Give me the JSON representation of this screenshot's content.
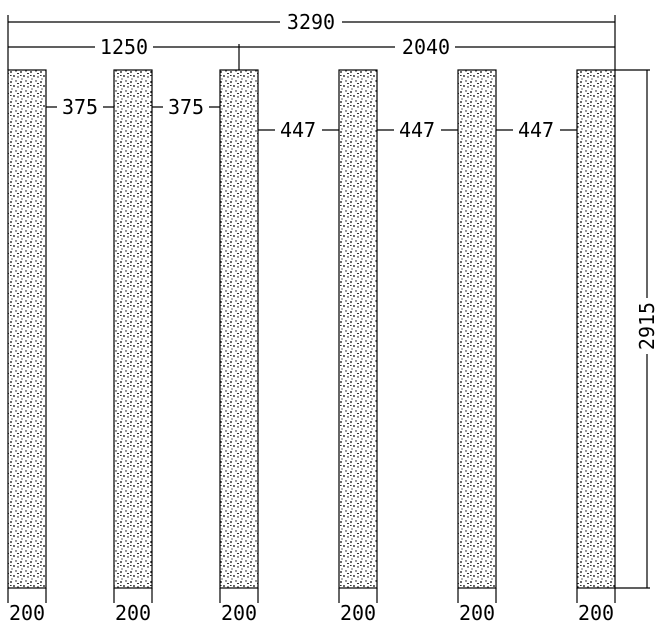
{
  "drawing": {
    "colors": {
      "line": "#000000",
      "background": "#ffffff",
      "fill": "#f2f2f2"
    },
    "dimensions": {
      "overall_width": "3290",
      "left_segment": "1250",
      "right_segment": "2040",
      "height": "2915",
      "gaps": [
        "375",
        "375",
        "447",
        "447",
        "447"
      ],
      "post_widths": [
        "200",
        "200",
        "200",
        "200",
        "200",
        "200"
      ]
    },
    "posts": [
      {
        "name": "post-1"
      },
      {
        "name": "post-2"
      },
      {
        "name": "post-3"
      },
      {
        "name": "post-4"
      },
      {
        "name": "post-5"
      },
      {
        "name": "post-6"
      }
    ]
  }
}
